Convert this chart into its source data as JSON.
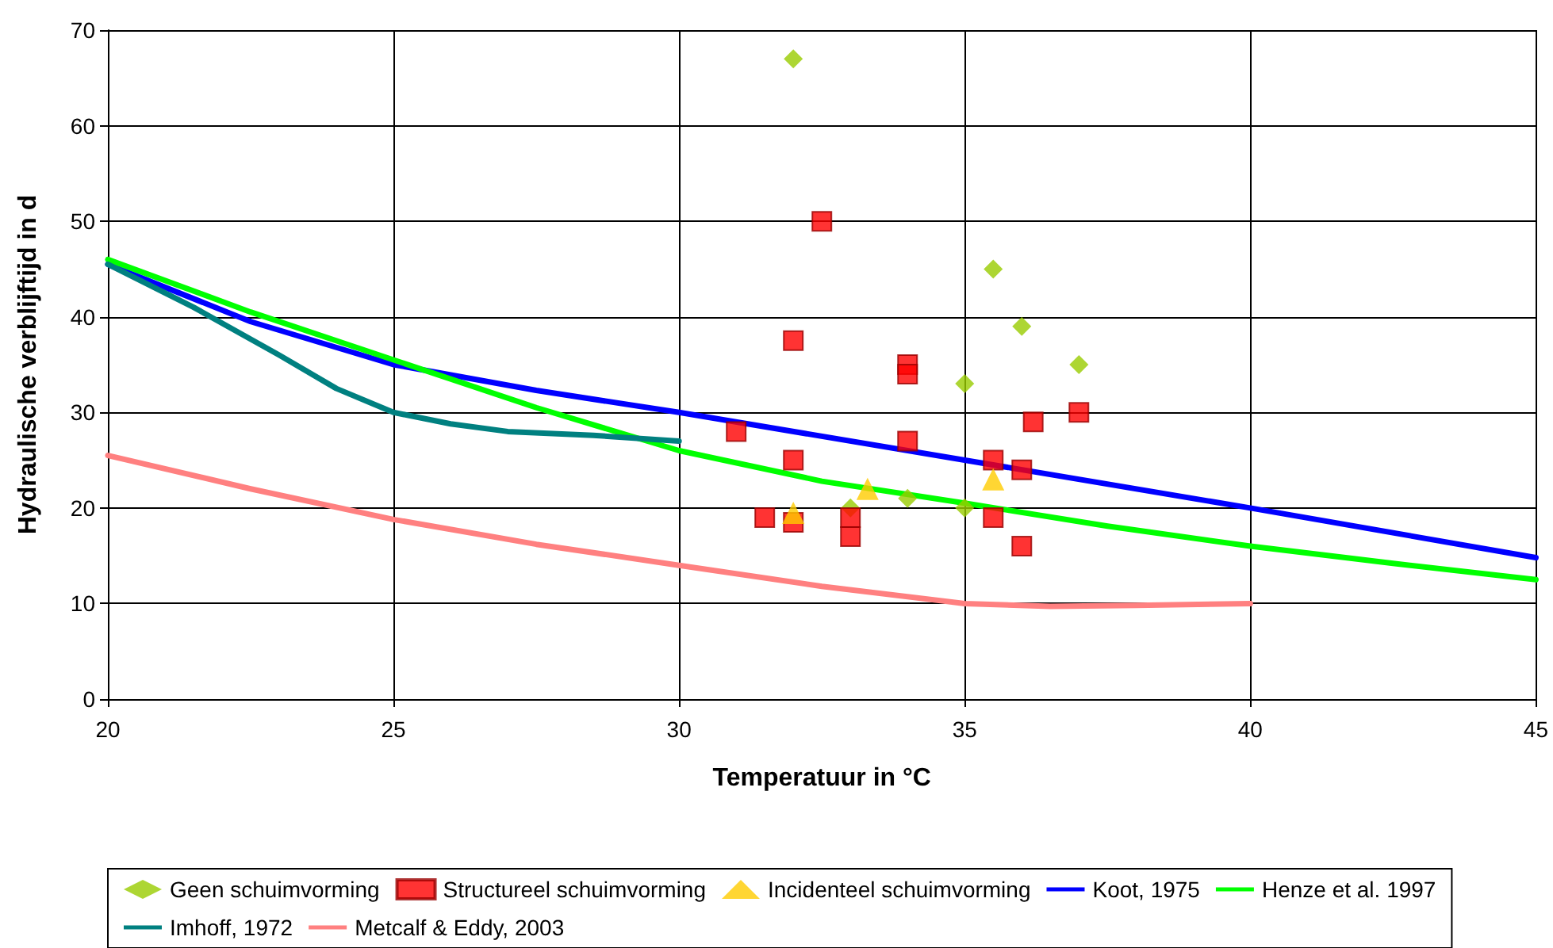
{
  "chart_data": {
    "type": "scatter",
    "xlabel": "Temperatuur in °C",
    "ylabel": "Hydraulische verblijftijd in d",
    "xlim": [
      20,
      45
    ],
    "xticks": [
      20,
      25,
      30,
      35,
      40,
      45
    ],
    "ylim": [
      0,
      70
    ],
    "yticks": [
      0,
      10,
      20,
      30,
      40,
      50,
      60,
      70
    ],
    "grid": true,
    "legend": "bottom",
    "series": [
      {
        "name": "Geen schuimvorming",
        "marker": "diamond",
        "color": "#99cc00",
        "x": [
          32,
          35.5,
          36,
          37,
          35,
          34,
          35,
          33
        ],
        "values": [
          67,
          45,
          39,
          35,
          33,
          21,
          20,
          20
        ]
      },
      {
        "name": "Structureel schuimvorming",
        "marker": "square",
        "color": "#ff0000",
        "x": [
          32.5,
          32,
          34,
          34,
          34,
          31,
          32,
          37,
          36.2,
          35.5,
          36,
          31.5,
          32,
          33,
          33,
          35.5,
          36
        ],
        "values": [
          50,
          37.5,
          35,
          34,
          27,
          28,
          25,
          30,
          29,
          25,
          24,
          19,
          18.5,
          19,
          17,
          19,
          16
        ]
      },
      {
        "name": "Incidenteel schuimvorming",
        "marker": "triangle",
        "color": "#ffcc00",
        "x": [
          32,
          33.3,
          35.5
        ],
        "values": [
          19.5,
          22,
          23
        ]
      },
      {
        "name": "Koot, 1975",
        "type": "line",
        "marker": "none",
        "color": "#0000ff",
        "x": [
          20,
          22.5,
          25,
          27.5,
          30,
          35,
          40,
          45
        ],
        "values": [
          45.5,
          39.5,
          35,
          32.3,
          30,
          25,
          20,
          14.8
        ]
      },
      {
        "name": "Henze et al. 1997",
        "type": "line",
        "marker": "none",
        "color": "#00ff00",
        "x": [
          20,
          22.5,
          25,
          27.5,
          30,
          32.5,
          35,
          37.5,
          40,
          42.5,
          45
        ],
        "values": [
          46,
          40.5,
          35.5,
          30.5,
          26,
          22.8,
          20.5,
          18.1,
          16,
          14.2,
          12.5
        ]
      },
      {
        "name": "Imhoff, 1972",
        "type": "line",
        "marker": "none",
        "color": "#008080",
        "x": [
          20,
          21.5,
          23,
          24,
          25,
          26,
          27,
          28.5,
          30
        ],
        "values": [
          45.5,
          41,
          36,
          32.5,
          30,
          28.8,
          28,
          27.6,
          27
        ]
      },
      {
        "name": "Metcalf & Eddy, 2003",
        "type": "line",
        "marker": "none",
        "color": "#ff8080",
        "x": [
          20,
          22.5,
          25,
          27.5,
          30,
          32.5,
          35,
          36.5,
          38,
          40
        ],
        "values": [
          25.5,
          22,
          18.8,
          16.2,
          14,
          11.8,
          10,
          9.7,
          9.8,
          10
        ]
      }
    ]
  }
}
